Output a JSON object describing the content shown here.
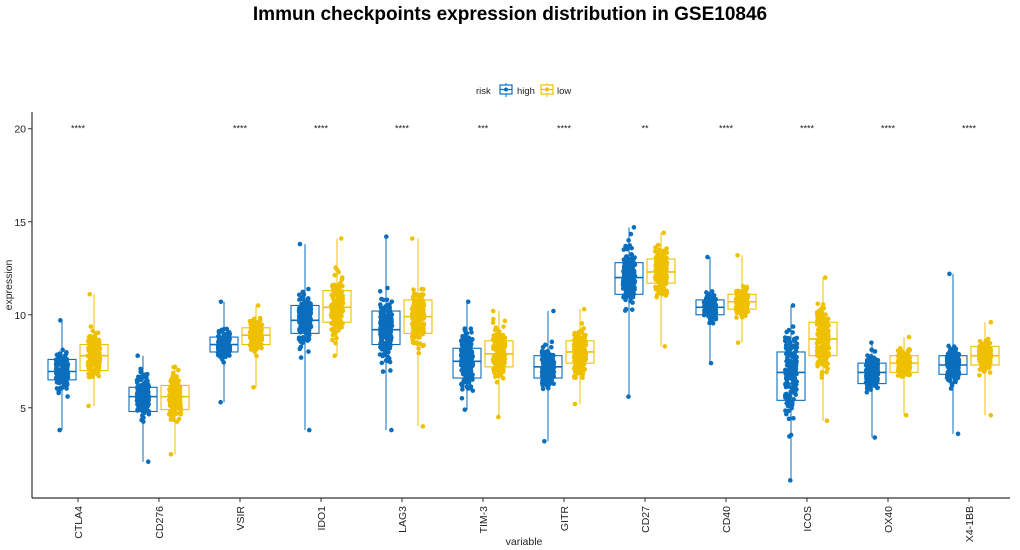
{
  "chart_data": {
    "type": "boxplot-jitter",
    "title": "Immun checkpoints expression distribution in GSE10846",
    "xlabel": "variable",
    "ylabel": "expression",
    "ylim": [
      0.15,
      20.9
    ],
    "yticks": [
      5,
      10,
      15,
      20
    ],
    "grid": false,
    "legend": {
      "title": "risk",
      "position": "top",
      "entries": [
        "high",
        "low"
      ]
    },
    "colors": {
      "high": "#0A6EBD",
      "low": "#EFC000"
    },
    "categories": [
      "CTLA4",
      "CD276",
      "VSIR",
      "IDO1",
      "LAG3",
      "TIM-3",
      "GITR",
      "CD27",
      "CD40",
      "ICOS",
      "OX40",
      "X4-1BB"
    ],
    "significance": [
      "****",
      "",
      "****",
      "****",
      "****",
      "***",
      "****",
      "**",
      "****",
      "****",
      "****",
      "****"
    ],
    "significance_y": 20,
    "series": [
      {
        "name": "high",
        "boxes": [
          {
            "min": 3.8,
            "q1": 6.5,
            "median": 6.95,
            "q3": 7.6,
            "max": 9.7
          },
          {
            "min": 2.1,
            "q1": 4.8,
            "median": 5.6,
            "q3": 6.1,
            "max": 7.8
          },
          {
            "min": 5.3,
            "q1": 8.0,
            "median": 8.4,
            "q3": 8.8,
            "max": 10.7
          },
          {
            "min": 3.8,
            "q1": 9.0,
            "median": 9.7,
            "q3": 10.5,
            "max": 13.8
          },
          {
            "min": 3.8,
            "q1": 8.4,
            "median": 9.2,
            "q3": 10.2,
            "max": 14.2
          },
          {
            "min": 4.9,
            "q1": 6.6,
            "median": 7.5,
            "q3": 8.2,
            "max": 10.7
          },
          {
            "min": 3.2,
            "q1": 6.6,
            "median": 7.2,
            "q3": 7.8,
            "max": 10.2
          },
          {
            "min": 5.6,
            "q1": 11.1,
            "median": 12.0,
            "q3": 12.8,
            "max": 14.7
          },
          {
            "min": 7.4,
            "q1": 10.0,
            "median": 10.4,
            "q3": 10.8,
            "max": 13.1
          },
          {
            "min": 1.1,
            "q1": 5.4,
            "median": 6.9,
            "q3": 8.0,
            "max": 10.5
          },
          {
            "min": 3.4,
            "q1": 6.3,
            "median": 6.9,
            "q3": 7.4,
            "max": 8.5
          },
          {
            "min": 3.6,
            "q1": 6.8,
            "median": 7.3,
            "q3": 7.8,
            "max": 12.2
          }
        ]
      },
      {
        "name": "low",
        "boxes": [
          {
            "min": 5.1,
            "q1": 7.0,
            "median": 7.8,
            "q3": 8.4,
            "max": 11.1
          },
          {
            "min": 2.5,
            "q1": 4.9,
            "median": 5.6,
            "q3": 6.2,
            "max": 7.2
          },
          {
            "min": 6.1,
            "q1": 8.4,
            "median": 8.9,
            "q3": 9.3,
            "max": 10.5
          },
          {
            "min": 7.8,
            "q1": 9.6,
            "median": 10.4,
            "q3": 11.3,
            "max": 14.1
          },
          {
            "min": 4.0,
            "q1": 9.0,
            "median": 9.9,
            "q3": 10.8,
            "max": 14.1
          },
          {
            "min": 4.5,
            "q1": 7.2,
            "median": 7.9,
            "q3": 8.6,
            "max": 10.2
          },
          {
            "min": 5.2,
            "q1": 7.4,
            "median": 8.0,
            "q3": 8.6,
            "max": 10.3
          },
          {
            "min": 8.3,
            "q1": 11.7,
            "median": 12.3,
            "q3": 13.0,
            "max": 14.4
          },
          {
            "min": 8.5,
            "q1": 10.3,
            "median": 10.7,
            "q3": 11.1,
            "max": 13.2
          },
          {
            "min": 4.3,
            "q1": 7.8,
            "median": 8.7,
            "q3": 9.6,
            "max": 12.0
          },
          {
            "min": 4.6,
            "q1": 6.9,
            "median": 7.4,
            "q3": 7.8,
            "max": 8.8
          },
          {
            "min": 4.6,
            "q1": 7.3,
            "median": 7.8,
            "q3": 8.3,
            "max": 9.6
          }
        ]
      }
    ]
  }
}
